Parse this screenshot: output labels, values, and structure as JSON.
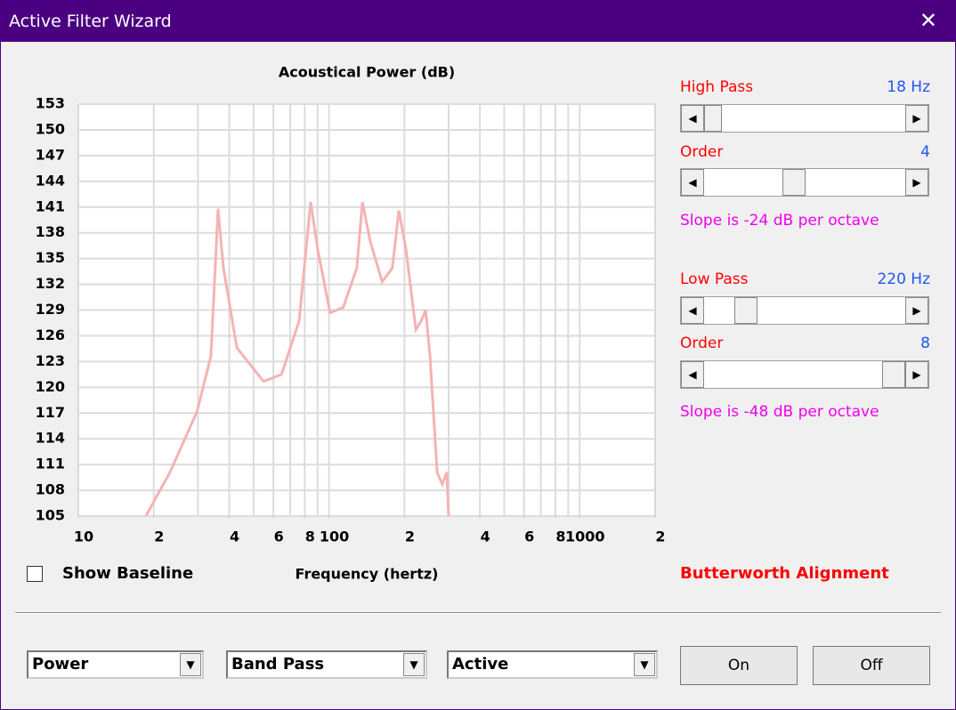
{
  "window": {
    "title": "Active Filter Wizard"
  },
  "chart_data": {
    "type": "line",
    "title": "Acoustical Power (dB)",
    "x_label": "Frequency (hertz)",
    "x": [
      18.6,
      23.2,
      29.7,
      33.8,
      36.1,
      37.9,
      42.9,
      54.8,
      64.6,
      76,
      84.5,
      90.2,
      101,
      114,
      129,
      136,
      146,
      163,
      179,
      190,
      203,
      222,
      233,
      243,
      253,
      270,
      283,
      295,
      300
    ],
    "values": [
      105,
      110.1,
      117.1,
      123.6,
      140.8,
      133.9,
      124.6,
      120.7,
      121.5,
      127.7,
      141.6,
      136,
      128.7,
      129.3,
      133.9,
      141.6,
      137,
      132.3,
      133.9,
      140.6,
      136,
      126.7,
      127.7,
      129,
      123.6,
      110.1,
      108.7,
      110.1,
      105
    ],
    "color": "#f5b3b3",
    "xlog": true,
    "grid": true,
    "xlim": [
      10,
      2000
    ],
    "ylim": [
      105,
      153
    ],
    "xticks": [
      10,
      {
        "value": 20,
        "label": "2"
      },
      {
        "value": 40,
        "label": "4"
      },
      {
        "value": 60,
        "label": "6"
      },
      {
        "value": 80,
        "label": "8"
      },
      100,
      {
        "value": 200,
        "label": "2"
      },
      {
        "value": 400,
        "label": "4"
      },
      {
        "value": 600,
        "label": "6"
      },
      {
        "value": 800,
        "label": "8"
      },
      1000,
      {
        "value": 2000,
        "label": "2"
      }
    ],
    "xgrid": [
      20,
      30,
      40,
      50,
      60,
      70,
      80,
      90,
      100,
      200,
      300,
      400,
      500,
      600,
      700,
      800,
      900,
      1000
    ],
    "yticks": [
      105,
      108,
      111,
      114,
      117,
      120,
      123,
      126,
      129,
      132,
      135,
      138,
      141,
      144,
      147,
      150,
      153
    ]
  },
  "controls": {
    "high_pass_label": "High Pass",
    "high_pass_value": "18 Hz",
    "hp_order_label": "Order",
    "hp_order_value": "4",
    "hp_slope": "Slope is -24 dB per octave",
    "low_pass_label": "Low Pass",
    "low_pass_value": "220 Hz",
    "lp_order_label": "Order",
    "lp_order_value": "8",
    "lp_slope": "Slope is -48 dB per octave",
    "alignment": "Butterworth Alignment",
    "show_baseline": "Show Baseline",
    "dropdowns": [
      "Power",
      "Band Pass",
      "Active"
    ],
    "buttons": [
      "On",
      "Off"
    ]
  }
}
